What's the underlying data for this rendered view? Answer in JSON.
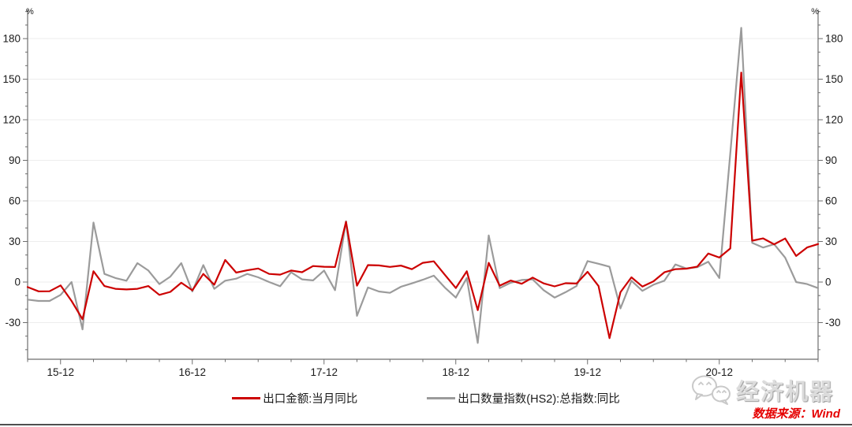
{
  "chart_data": {
    "type": "line",
    "title": "",
    "ylabel": "%",
    "ylabel_right": "%",
    "ylim": [
      -57,
      200
    ],
    "y_ticks": [
      180,
      150,
      120,
      90,
      60,
      30,
      0,
      -30
    ],
    "y_minor_tick_step": 10,
    "x_tick_labels": [
      "15-12",
      "16-12",
      "17-12",
      "18-12",
      "19-12",
      "20-12"
    ],
    "grid": "horizontal light gray lines every 30",
    "legend_position": "bottom-center",
    "x": [
      "2015-09",
      "2015-10",
      "2015-11",
      "2015-12",
      "2016-01",
      "2016-02",
      "2016-03",
      "2016-04",
      "2016-05",
      "2016-06",
      "2016-07",
      "2016-08",
      "2016-09",
      "2016-10",
      "2016-11",
      "2016-12",
      "2017-01",
      "2017-02",
      "2017-03",
      "2017-04",
      "2017-05",
      "2017-06",
      "2017-07",
      "2017-08",
      "2017-09",
      "2017-10",
      "2017-11",
      "2017-12",
      "2018-01",
      "2018-02",
      "2018-03",
      "2018-04",
      "2018-05",
      "2018-06",
      "2018-07",
      "2018-08",
      "2018-09",
      "2018-10",
      "2018-11",
      "2018-12",
      "2019-01",
      "2019-02",
      "2019-03",
      "2019-04",
      "2019-05",
      "2019-06",
      "2019-07",
      "2019-08",
      "2019-09",
      "2019-10",
      "2019-11",
      "2019-12",
      "2020-01",
      "2020-02",
      "2020-03",
      "2020-04",
      "2020-05",
      "2020-06",
      "2020-07",
      "2020-08",
      "2020-09",
      "2020-10",
      "2020-11",
      "2020-12",
      "2021-01",
      "2021-02",
      "2021-03",
      "2021-04",
      "2021-05",
      "2021-06",
      "2021-07",
      "2021-08",
      "2021-09"
    ],
    "series": [
      {
        "name": "出口金额:当月同比",
        "color": "#cc0000",
        "values": [
          -3.7,
          -6.9,
          -6.8,
          -2.5,
          -14,
          -27.5,
          8,
          -3,
          -5,
          -5.5,
          -5,
          -3,
          -9.5,
          -7.3,
          -0.5,
          -6.1,
          6,
          -2,
          16.3,
          7,
          8.7,
          10,
          6,
          5.5,
          8.5,
          7.3,
          11.8,
          11.3,
          11.1,
          44.5,
          -2.7,
          12.5,
          12.3,
          11.2,
          12.2,
          9.5,
          14.2,
          15.3,
          5.4,
          -4.4,
          8,
          -20.8,
          14.2,
          -2.7,
          1.1,
          -1.3,
          3.3,
          -1,
          -3.2,
          -0.9,
          -1.1,
          7.6,
          -3,
          -41.5,
          -7.5,
          3.5,
          -3.3,
          0.5,
          7.2,
          9.5,
          9.9,
          11.4,
          21.1,
          18.1,
          24.8,
          154.9,
          30.6,
          32.3,
          27.9,
          32.2,
          19.3,
          25.6,
          28.1
        ]
      },
      {
        "name": "出口数量指数(HS2):总指数:同比",
        "color": "#9b9b9b",
        "values": [
          -13,
          -14,
          -14,
          -9.5,
          0,
          -35,
          44,
          6,
          3,
          1,
          14,
          8.5,
          -1.5,
          4,
          14,
          -7,
          12.5,
          -5,
          1,
          2.5,
          6,
          3.5,
          0,
          -3.1,
          7.2,
          2,
          1.2,
          8.5,
          -6,
          45,
          -25,
          -4,
          -7,
          -8,
          -3.5,
          -1,
          1.7,
          4.7,
          -4,
          -11.5,
          3,
          -45,
          34.5,
          -4.5,
          -0.5,
          1.5,
          2,
          -6,
          -11.5,
          -7.5,
          -3,
          15.5,
          13.5,
          11.3,
          -19.5,
          1,
          -6.5,
          -2,
          1,
          13,
          10,
          11,
          15,
          3,
          95,
          188,
          29,
          25.5,
          28,
          18,
          0,
          -1.5,
          -4.5
        ]
      }
    ]
  },
  "legend": {
    "item1": "出口金额:当月同比",
    "item2": "出口数量指数(HS2):总指数:同比"
  },
  "watermark": {
    "brand": "经济机器",
    "icon": "wechat-logo-icon"
  },
  "source_note": "数据来源：Wind"
}
